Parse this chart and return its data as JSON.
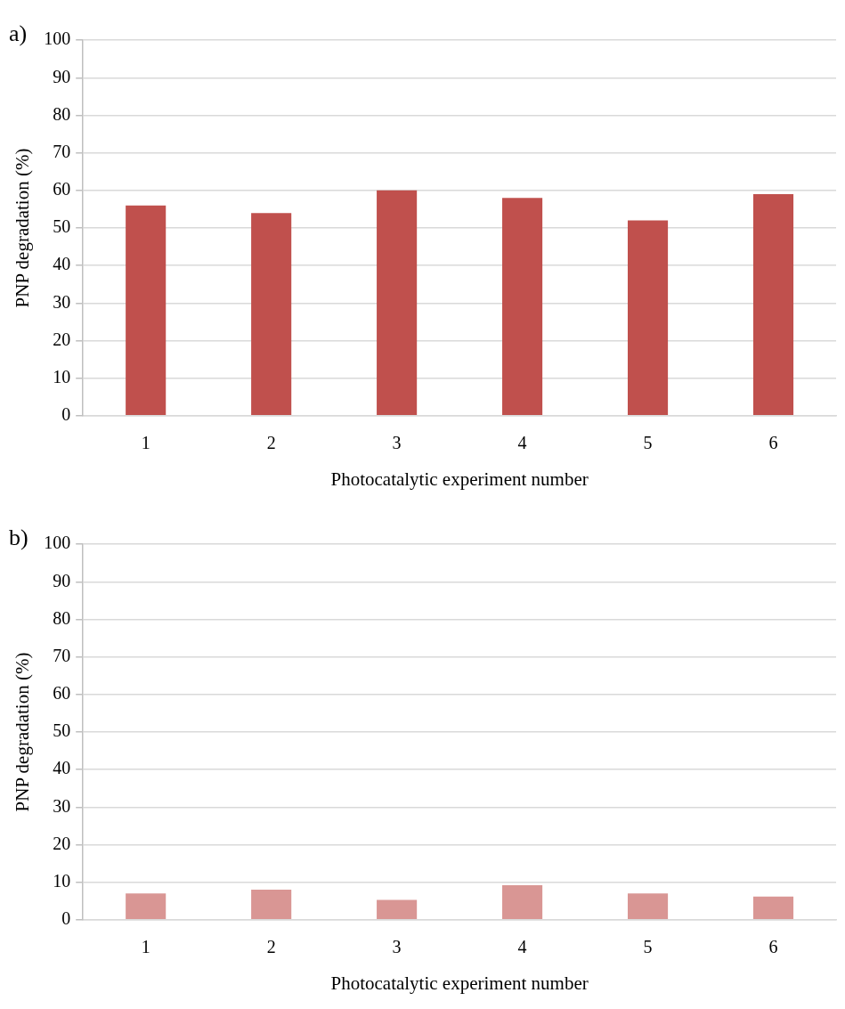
{
  "chart_data": [
    {
      "type": "bar",
      "title": "a)",
      "xlabel": "Photocatalytic experiment number",
      "ylabel": "PNP degradation (%)",
      "categories": [
        "1",
        "2",
        "3",
        "4",
        "5",
        "6"
      ],
      "values": [
        56,
        54,
        60,
        58,
        52,
        59
      ],
      "color": "#c0504d",
      "ylim": [
        0,
        100
      ],
      "yticks": [
        0,
        10,
        20,
        30,
        40,
        50,
        60,
        70,
        80,
        90,
        100
      ],
      "grid": "y"
    },
    {
      "type": "bar",
      "title": "b)",
      "xlabel": "Photocatalytic experiment number",
      "ylabel": "PNP degradation (%)",
      "categories": [
        "1",
        "2",
        "3",
        "4",
        "5",
        "6"
      ],
      "values": [
        7,
        8,
        5.3,
        9.2,
        7,
        6.2
      ],
      "color": "#d99694",
      "ylim": [
        0,
        100
      ],
      "yticks": [
        0,
        10,
        20,
        30,
        40,
        50,
        60,
        70,
        80,
        90,
        100
      ],
      "grid": "y"
    }
  ]
}
